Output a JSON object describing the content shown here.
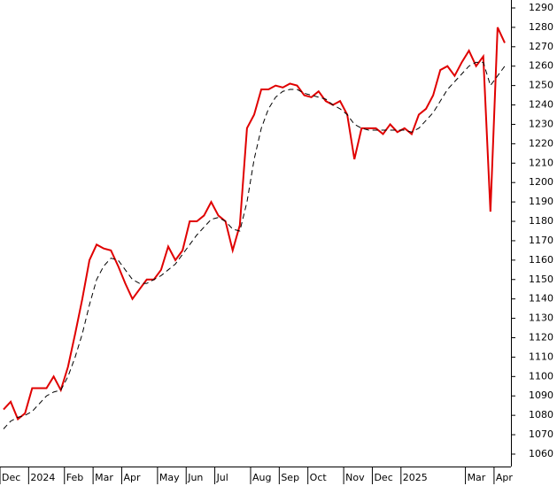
{
  "chart_data": {
    "type": "line",
    "categories": [
      "Dec",
      null,
      null,
      null,
      "2024",
      null,
      null,
      null,
      null,
      "Feb",
      null,
      null,
      null,
      "Mar",
      null,
      null,
      null,
      "Apr",
      null,
      null,
      null,
      null,
      "May",
      null,
      null,
      null,
      "Jun",
      null,
      null,
      null,
      "Jul",
      null,
      null,
      null,
      null,
      "Aug",
      null,
      null,
      null,
      "Sep",
      null,
      null,
      null,
      "Oct",
      null,
      null,
      null,
      null,
      "Nov",
      null,
      null,
      null,
      "Dec",
      null,
      null,
      null,
      "2025",
      null,
      null,
      null,
      null,
      null,
      null,
      null,
      null,
      "Mar",
      null,
      null,
      null,
      "Apr",
      null
    ],
    "series": [
      {
        "color": "#e00000",
        "values": [
          1083,
          1087,
          1078,
          1081,
          1094,
          1094,
          1094,
          1100,
          1093,
          1105,
          1122,
          1140,
          1160,
          1168,
          1166,
          1165,
          1157,
          1148,
          1140,
          1145,
          1150,
          1150,
          1155,
          1167,
          1160,
          1165,
          1180,
          1180,
          1183,
          1190,
          1183,
          1180,
          1165,
          1178,
          1228,
          1235,
          1248,
          1248,
          1250,
          1249,
          1251,
          1250,
          1245,
          1244,
          1247,
          1242,
          1240,
          1242,
          1235,
          1212,
          1228,
          1228,
          1228,
          1225,
          1230,
          1226,
          1228,
          1225,
          1235,
          1238,
          1245,
          1258,
          1260,
          1255,
          1262,
          1268,
          1260,
          1265,
          1185,
          1280,
          1272
        ]
      },
      {
        "color": "#000000",
        "dashed": true,
        "values": [
          1073,
          1077,
          1079,
          1080,
          1082,
          1086,
          1090,
          1092,
          1093,
          1100,
          1110,
          1122,
          1137,
          1150,
          1157,
          1161,
          1160,
          1155,
          1150,
          1148,
          1148,
          1150,
          1152,
          1155,
          1158,
          1163,
          1168,
          1173,
          1177,
          1181,
          1182,
          1180,
          1176,
          1175,
          1190,
          1212,
          1228,
          1238,
          1244,
          1247,
          1248,
          1248,
          1246,
          1245,
          1244,
          1243,
          1240,
          1238,
          1235,
          1230,
          1228,
          1227,
          1227,
          1227,
          1227,
          1227,
          1227,
          1226,
          1228,
          1232,
          1236,
          1242,
          1248,
          1252,
          1256,
          1260,
          1262,
          1262,
          1250,
          1255,
          1260
        ]
      }
    ],
    "ylim": [
      1053.6,
      1294.1
    ],
    "yticks": [
      1060,
      1070,
      1080,
      1090,
      1100,
      1110,
      1120,
      1130,
      1140,
      1150,
      1160,
      1170,
      1180,
      1190,
      1200,
      1210,
      1220,
      1230,
      1240,
      1250,
      1260,
      1270,
      1280,
      1290
    ]
  }
}
